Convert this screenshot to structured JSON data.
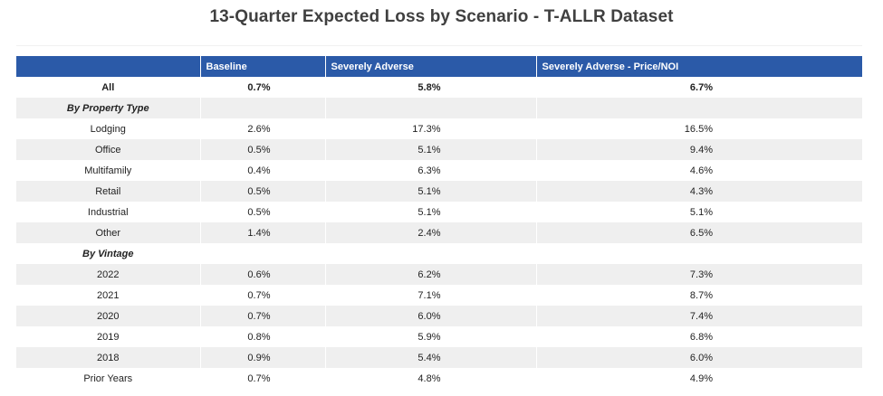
{
  "title": "13-Quarter Expected Loss by Scenario - T-ALLR Dataset",
  "columns": [
    "",
    "Baseline",
    "Severely Adverse",
    "Severely Adverse - Price/NOI"
  ],
  "rows": [
    {
      "label": "All",
      "baseline": "0.7%",
      "severely_adverse": "5.8%",
      "price_noi": "6.7%"
    },
    {
      "label": "By Property Type",
      "baseline": "",
      "severely_adverse": "",
      "price_noi": ""
    },
    {
      "label": "Lodging",
      "baseline": "2.6%",
      "severely_adverse": "17.3%",
      "price_noi": "16.5%"
    },
    {
      "label": "Office",
      "baseline": "0.5%",
      "severely_adverse": "5.1%",
      "price_noi": "9.4%"
    },
    {
      "label": "Multifamily",
      "baseline": "0.4%",
      "severely_adverse": "6.3%",
      "price_noi": "4.6%"
    },
    {
      "label": "Retail",
      "baseline": "0.5%",
      "severely_adverse": "5.1%",
      "price_noi": "4.3%"
    },
    {
      "label": "Industrial",
      "baseline": "0.5%",
      "severely_adverse": "5.1%",
      "price_noi": "5.1%"
    },
    {
      "label": "Other",
      "baseline": "1.4%",
      "severely_adverse": "2.4%",
      "price_noi": "6.5%"
    },
    {
      "label": "By Vintage",
      "baseline": "",
      "severely_adverse": "",
      "price_noi": ""
    },
    {
      "label": "2022",
      "baseline": "0.6%",
      "severely_adverse": "6.2%",
      "price_noi": "7.3%"
    },
    {
      "label": "2021",
      "baseline": "0.7%",
      "severely_adverse": "7.1%",
      "price_noi": "8.7%"
    },
    {
      "label": "2020",
      "baseline": "0.7%",
      "severely_adverse": "6.0%",
      "price_noi": "7.4%"
    },
    {
      "label": "2019",
      "baseline": "0.8%",
      "severely_adverse": "5.9%",
      "price_noi": "6.8%"
    },
    {
      "label": "2018",
      "baseline": "0.9%",
      "severely_adverse": "5.4%",
      "price_noi": "6.0%"
    },
    {
      "label": "Prior Years",
      "baseline": "0.7%",
      "severely_adverse": "4.8%",
      "price_noi": "4.9%"
    }
  ],
  "colors": {
    "header_bg": "#2b5aa8",
    "header_text": "#ffffff",
    "stripe": "#efefef"
  }
}
